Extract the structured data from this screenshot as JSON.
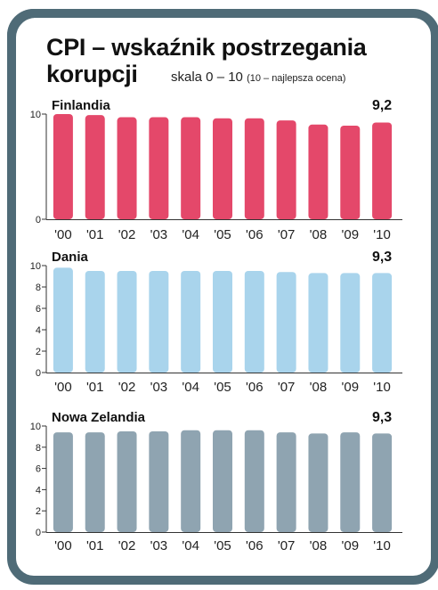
{
  "title_line1": "CPI – wskaźnik postrzegania",
  "title_line2": "korupcji",
  "subtitle_main": "skala 0 – 10",
  "subtitle_note": "(10 – najlepsza ocena)",
  "colors": {
    "Finlandia": "#e4486a",
    "Dania": "#a9d4ec",
    "Nowa Zelandia": "#8fa4b1"
  },
  "chart_data": [
    {
      "type": "bar",
      "title": "Finlandia",
      "categories": [
        "'00",
        "'01",
        "'02",
        "'03",
        "'04",
        "'05",
        "'06",
        "'07",
        "'08",
        "'09",
        "'10"
      ],
      "series": [
        {
          "name": "Finlandia",
          "values": [
            10.0,
            9.9,
            9.7,
            9.7,
            9.7,
            9.6,
            9.6,
            9.4,
            9.0,
            8.9,
            9.2
          ]
        }
      ],
      "ylim": [
        0,
        10
      ],
      "yticks": [
        0,
        10
      ],
      "last_label": "9,2"
    },
    {
      "type": "bar",
      "title": "Dania",
      "categories": [
        "'00",
        "'01",
        "'02",
        "'03",
        "'04",
        "'05",
        "'06",
        "'07",
        "'08",
        "'09",
        "'10"
      ],
      "series": [
        {
          "name": "Dania",
          "values": [
            9.8,
            9.5,
            9.5,
            9.5,
            9.5,
            9.5,
            9.5,
            9.4,
            9.3,
            9.3,
            9.3
          ]
        }
      ],
      "ylim": [
        0,
        10
      ],
      "yticks": [
        0,
        2,
        4,
        6,
        8,
        10
      ],
      "last_label": "9,3"
    },
    {
      "type": "bar",
      "title": "Nowa Zelandia",
      "categories": [
        "'00",
        "'01",
        "'02",
        "'03",
        "'04",
        "'05",
        "'06",
        "'07",
        "'08",
        "'09",
        "'10"
      ],
      "series": [
        {
          "name": "Nowa Zelandia",
          "values": [
            9.4,
            9.4,
            9.5,
            9.5,
            9.6,
            9.6,
            9.6,
            9.4,
            9.3,
            9.4,
            9.3
          ]
        }
      ],
      "ylim": [
        0,
        10
      ],
      "yticks": [
        0,
        2,
        4,
        6,
        8,
        10
      ],
      "last_label": "9,3"
    }
  ]
}
